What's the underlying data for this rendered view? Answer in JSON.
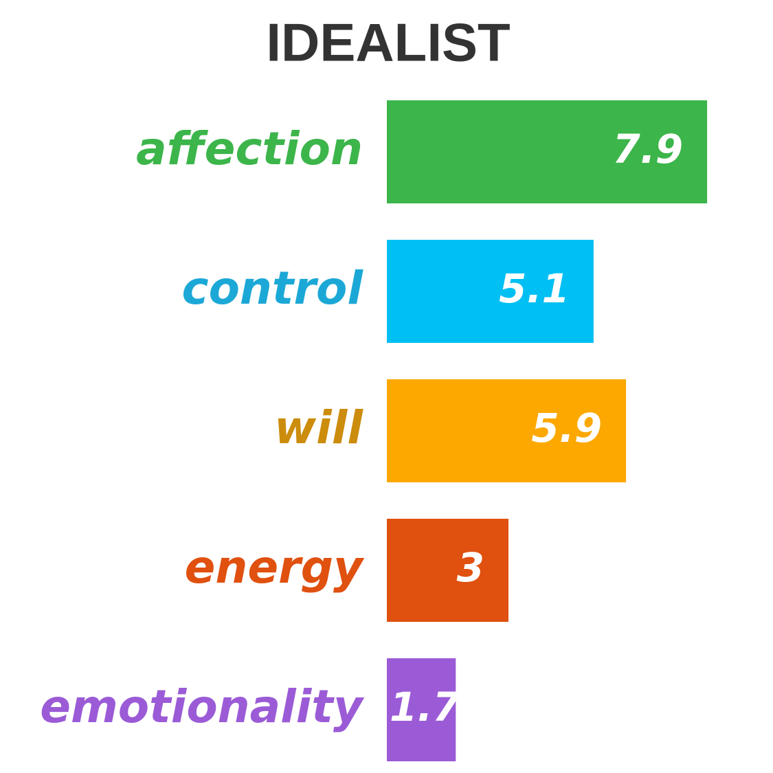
{
  "chart_data": {
    "type": "bar",
    "orientation": "horizontal",
    "title": "IDEALIST",
    "categories": [
      "affection",
      "control",
      "will",
      "energy",
      "emotionality"
    ],
    "values": [
      7.9,
      5.1,
      5.9,
      3,
      1.7
    ],
    "colors": [
      "#3cb54a",
      "#00bff3",
      "#fca800",
      "#e0500f",
      "#9b5bd6"
    ],
    "label_colors": [
      "#3cb54a",
      "#1ca8d6",
      "#cc8c0c",
      "#e0500f",
      "#9b5bd6"
    ]
  }
}
